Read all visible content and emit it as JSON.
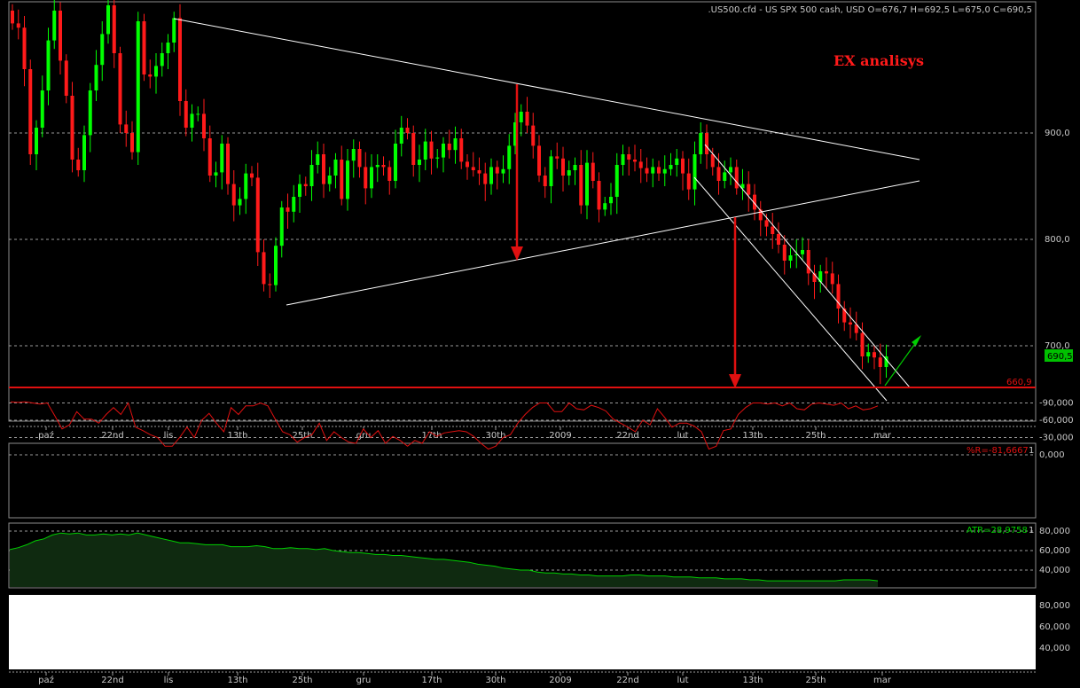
{
  "header": {
    "title": ".US500.cfd - US SPX 500 cash, USD O=676,7 H=692,5 L=675,0 C=690,5",
    "watermark": "EX analisys"
  },
  "main_panel": {
    "y_ticks": [
      "900,0",
      "800,0",
      "700,0"
    ],
    "last_price": "690,5",
    "support_label": "660,9"
  },
  "x_axis": {
    "labels": [
      "paź",
      "22nd",
      "lis",
      "13th",
      "25th",
      "gru",
      "17th",
      "30th",
      "2009",
      "22nd",
      "lut",
      "13th",
      "25th",
      "mar"
    ]
  },
  "wr_panel": {
    "label": "%R=-81,6667",
    "suffix": "1",
    "ticks": [
      "0,000",
      "-30,000",
      "-60,000",
      "-90,000"
    ]
  },
  "atr_panel": {
    "label": "ATR=28,9758",
    "suffix": "1",
    "ticks": [
      "80,000",
      "60,000",
      "40,000"
    ]
  },
  "lower_panel": {
    "ticks": [
      "80,000",
      "60,000",
      "40,000"
    ]
  },
  "colors": {
    "background": "#000000",
    "up_candle": "#00ff00",
    "down_candle": "#ff1a1a",
    "trendline": "#ffffff",
    "support": "#e01010",
    "wr_line": "#e01010",
    "atr_line": "#00d000",
    "gridline": "#9a9a9a"
  },
  "chart_data": [
    {
      "type": "candlestick",
      "title": ".US500.cfd - US SPX 500 cash, USD",
      "ohlc_last": {
        "open": 676.7,
        "high": 692.5,
        "low": 675.0,
        "close": 690.5
      },
      "ylim": [
        630,
        1015
      ],
      "y_ticks": [
        700,
        800,
        900
      ],
      "support_level": 660.9,
      "closes": [
        1003,
        999,
        960,
        880,
        905,
        940,
        987,
        1015,
        968,
        935,
        875,
        865,
        898,
        940,
        964,
        993,
        1020,
        975,
        908,
        900,
        882,
        1005,
        955,
        953,
        963,
        975,
        985,
        1008,
        930,
        905,
        918,
        918,
        895,
        860,
        863,
        890,
        852,
        832,
        838,
        862,
        858,
        788,
        758,
        757,
        794,
        830,
        826,
        840,
        852,
        850,
        870,
        880,
        852,
        860,
        875,
        838,
        874,
        885,
        868,
        848,
        868,
        870,
        868,
        855,
        890,
        905,
        900,
        870,
        875,
        892,
        876,
        877,
        890,
        884,
        895,
        873,
        868,
        865,
        862,
        852,
        868,
        862,
        866,
        888,
        910,
        920,
        907,
        888,
        860,
        850,
        878,
        876,
        860,
        865,
        870,
        832,
        872,
        855,
        828,
        834,
        840,
        870,
        880,
        875,
        873,
        867,
        862,
        868,
        862,
        866,
        870,
        876,
        862,
        847,
        880,
        900,
        880,
        868,
        855,
        863,
        868,
        848,
        852,
        842,
        828,
        818,
        812,
        805,
        795,
        780,
        785,
        786,
        790,
        768,
        760,
        770,
        768,
        758,
        735,
        722,
        720,
        712,
        690,
        694,
        689,
        680,
        690
      ]
    },
    {
      "type": "line",
      "name": "%R",
      "last_value": -81.6667,
      "y_ticks": [
        0,
        -30,
        -60,
        -90
      ],
      "values": [
        -92,
        -91,
        -92,
        -90,
        -88,
        -90,
        -68,
        -45,
        -52,
        -75,
        -62,
        -62,
        -55,
        -70,
        -82,
        -70,
        -90,
        -48,
        -42,
        -35,
        -30,
        -15,
        -15,
        -30,
        -48,
        -30,
        -60,
        -72,
        -55,
        -40,
        -82,
        -70,
        -85,
        -85,
        -90,
        -85,
        -62,
        -40,
        -35,
        -22,
        -30,
        -35,
        -55,
        -25,
        -40,
        -30,
        -22,
        -20,
        -45,
        -30,
        -42,
        -20,
        -32,
        -25,
        -15,
        -25,
        -20,
        -40,
        -32,
        -38,
        -40,
        -42,
        -40,
        -32,
        -20,
        -10,
        -15,
        -30,
        -35,
        -55,
        -70,
        -82,
        -90,
        -90,
        -75,
        -75,
        -90,
        -80,
        -78,
        -86,
        -82,
        -76,
        -62,
        -55,
        -48,
        -40,
        -60,
        -52,
        -80,
        -65,
        -48,
        -55,
        -55,
        -50,
        -40,
        -10,
        -15,
        -42,
        -45,
        -70,
        -82,
        -90,
        -90,
        -88,
        -90,
        -85,
        -90,
        -80,
        -78,
        -88,
        -90,
        -88,
        -86,
        -90,
        -80,
        -85,
        -78,
        -80,
        -85
      ]
    },
    {
      "type": "area",
      "name": "ATR",
      "last_value": 28.9758,
      "y_ticks": [
        40,
        60,
        80
      ],
      "values": [
        61,
        63,
        66,
        70,
        72,
        76,
        78,
        77,
        78,
        76,
        76,
        77,
        76,
        77,
        76,
        78,
        76,
        74,
        72,
        70,
        68,
        68,
        67,
        66,
        66,
        66,
        64,
        64,
        64,
        65,
        64,
        62,
        62,
        63,
        62,
        62,
        61,
        62,
        60,
        59,
        58,
        58,
        57,
        56,
        56,
        55,
        55,
        54,
        53,
        52,
        51,
        51,
        50,
        49,
        48,
        46,
        45,
        44,
        42,
        41,
        40,
        40,
        38,
        37,
        37,
        36,
        36,
        35,
        35,
        34,
        34,
        34,
        34,
        35,
        35,
        34,
        34,
        34,
        33,
        33,
        33,
        32,
        32,
        32,
        31,
        31,
        31,
        30,
        30,
        29,
        29,
        29,
        29,
        29,
        29,
        29,
        29,
        29,
        30,
        30,
        30,
        30,
        29
      ]
    }
  ]
}
